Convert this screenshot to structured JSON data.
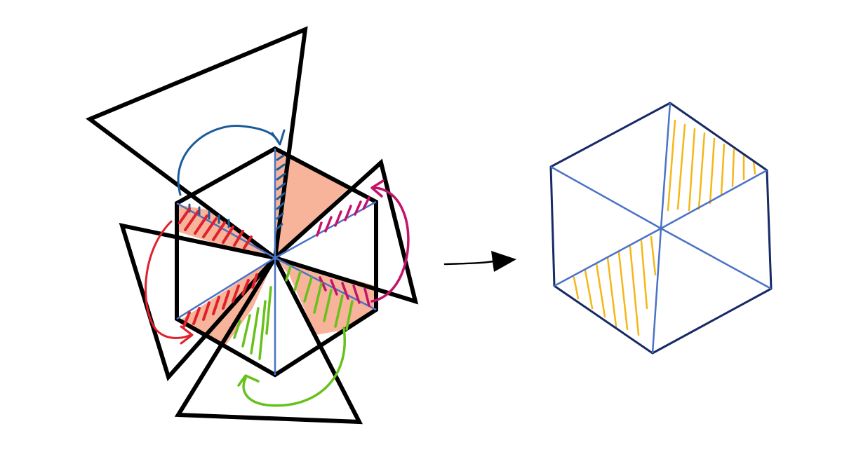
{
  "diagram": {
    "colors": {
      "outline": "#000000",
      "salmon_fill": "#f7b49a",
      "ray_blue": "#4a72c6",
      "arrow_blue": "#1b5c9a",
      "arrow_red": "#e0202a",
      "arrow_magenta": "#c4136a",
      "arrow_green": "#66c21a",
      "hex_outline_navy": "#172a66",
      "hatch_yellow": "#f5b718"
    },
    "icons": {
      "transform_arrow": "arrow-right-icon"
    }
  }
}
